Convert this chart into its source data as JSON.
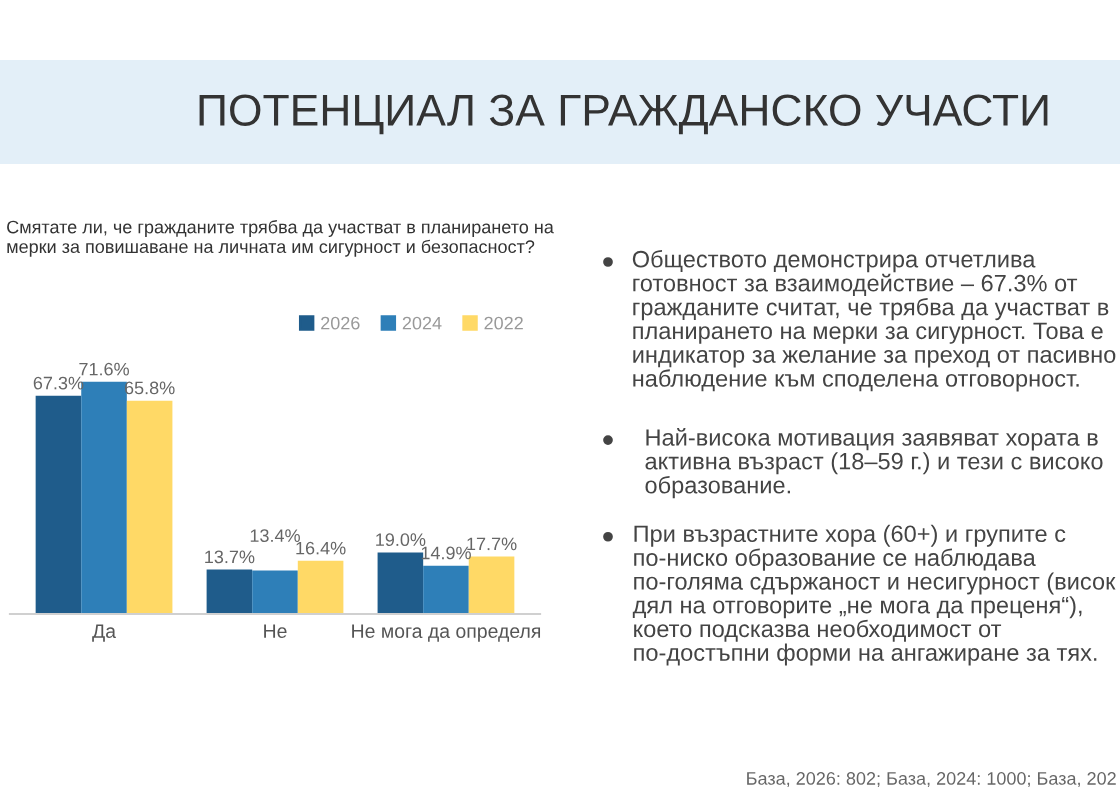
{
  "chart_data": {
    "type": "bar",
    "title": "ПОТЕНЦИАЛ ЗА ГРАЖДАНСКО УЧАСТИ",
    "subtitle": "Смятате ли, че гражданите трябва да участват в планирането на мерки за повишаване на личната им сигурност и безопасност?",
    "categories": [
      "Да",
      "Не",
      "Не мога да определя"
    ],
    "series": [
      {
        "name": "2026",
        "color": "#1f5c8b",
        "values": [
          67.3,
          13.7,
          19.0
        ],
        "value_labels": [
          "67.3%",
          "13.7%",
          "19.0%"
        ]
      },
      {
        "name": "2024",
        "color": "#2e7fb8",
        "values": [
          71.6,
          13.4,
          14.9
        ],
        "value_labels": [
          "71.6%",
          "13.4%",
          "14.9%"
        ]
      },
      {
        "name": "2022",
        "color": "#ffd966",
        "values": [
          65.8,
          16.4,
          17.7
        ],
        "value_labels": [
          "65.8%",
          "16.4%",
          "17.7%"
        ]
      }
    ],
    "legend": "top right",
    "annotations": [
      "Обществото демонстрира отчетлива готовност за взаимодействие – 67.3% от гражданите считат, че трябва да участват в планирането на мерки за сигурност. Това е индикатор за желание за преход от пасивно наблюдение към споделена отговорност.",
      "Най-висока мотивация заявяват хората в активна възраст (18–59 г.) и тези с високо образование.",
      "При възрастните хора (60+) и групите с по-ниско образование се наблюдава по-голяма сдържаност и несигурност (висок дял на отговорите „не мога да преценя“), което подсказва необходимост от по-достъпни форми на ангажиране за тях.",
      "База, 2026: 802; База, 2024: 1000; База, 202"
    ]
  }
}
